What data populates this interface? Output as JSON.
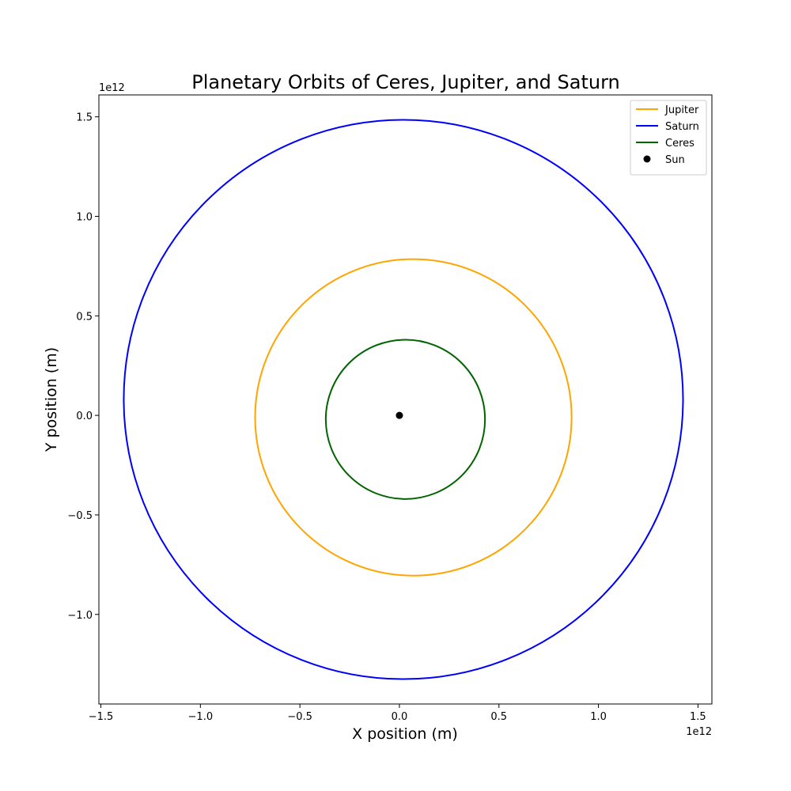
{
  "chart_data": {
    "type": "line",
    "title": "Planetary Orbits of Ceres, Jupiter, and Saturn",
    "xlabel": "X position (m)",
    "ylabel": "Y position (m)",
    "x_offset_label": "1e12",
    "y_offset_label": "1e12",
    "xlim": [
      -1.51,
      1.57
    ],
    "ylim": [
      -1.45,
      1.61
    ],
    "xticks": [
      -1.5,
      -1.0,
      -0.5,
      0.0,
      0.5,
      1.0,
      1.5
    ],
    "yticks": [
      -1.0,
      -0.5,
      0.0,
      0.5,
      1.0,
      1.5
    ],
    "xtick_labels": [
      "−1.5",
      "−1.0",
      "−0.5",
      "0.0",
      "0.5",
      "1.0",
      "1.5"
    ],
    "ytick_labels": [
      "−1.0",
      "−0.5",
      "0.0",
      "0.5",
      "1.0",
      "1.5"
    ],
    "grid": false,
    "legend_position": "top-right",
    "series": [
      {
        "name": "Jupiter",
        "kind": "orbit",
        "color": "#FFA500",
        "center": [
          0.07,
          -0.01
        ],
        "semi_axes": [
          0.795,
          0.795
        ]
      },
      {
        "name": "Saturn",
        "kind": "orbit",
        "color": "#0000FF",
        "center": [
          0.02,
          0.08
        ],
        "semi_axes": [
          1.405,
          1.405
        ]
      },
      {
        "name": "Ceres",
        "kind": "orbit",
        "color": "#006400",
        "center": [
          0.03,
          -0.02
        ],
        "semi_axes": [
          0.4,
          0.4
        ]
      },
      {
        "name": "Sun",
        "kind": "point",
        "color": "#000000",
        "x": 0.0,
        "y": 0.0
      }
    ]
  }
}
